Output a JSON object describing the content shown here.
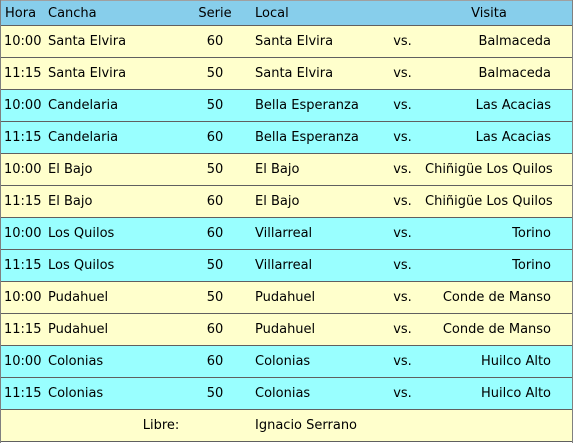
{
  "headers": {
    "hora": "Hora",
    "cancha": "Cancha",
    "serie": "Serie",
    "local": "Local",
    "visita": "Visita"
  },
  "rows": [
    {
      "hora": "10:00",
      "cancha": "Santa Elvira",
      "serie": "60",
      "local": "Santa Elvira",
      "vs": "vs.",
      "visita": "Balmaceda"
    },
    {
      "hora": "11:15",
      "cancha": "Santa Elvira",
      "serie": "50",
      "local": "Santa Elvira",
      "vs": "vs.",
      "visita": "Balmaceda"
    },
    {
      "hora": "10:00",
      "cancha": "Candelaria",
      "serie": "50",
      "local": "Bella Esperanza",
      "vs": "vs.",
      "visita": "Las Acacias"
    },
    {
      "hora": "11:15",
      "cancha": "Candelaria",
      "serie": "60",
      "local": "Bella Esperanza",
      "vs": "vs.",
      "visita": "Las Acacias"
    },
    {
      "hora": "10:00",
      "cancha": "El Bajo",
      "serie": "50",
      "local": "El Bajo",
      "vs": "vs.",
      "visita": "Chiñigüe Los Quilos"
    },
    {
      "hora": "11:15",
      "cancha": "El Bajo",
      "serie": "60",
      "local": "El Bajo",
      "vs": "vs.",
      "visita": "Chiñigüe Los Quilos"
    },
    {
      "hora": "10:00",
      "cancha": "Los Quilos",
      "serie": "60",
      "local": "Villarreal",
      "vs": "vs.",
      "visita": "Torino"
    },
    {
      "hora": "11:15",
      "cancha": "Los Quilos",
      "serie": "50",
      "local": "Villarreal",
      "vs": "vs.",
      "visita": "Torino"
    },
    {
      "hora": "10:00",
      "cancha": "Pudahuel",
      "serie": "50",
      "local": "Pudahuel",
      "vs": "vs.",
      "visita": "Conde de Manso"
    },
    {
      "hora": "11:15",
      "cancha": "Pudahuel",
      "serie": "60",
      "local": "Pudahuel",
      "vs": "vs.",
      "visita": "Conde de Manso"
    },
    {
      "hora": "10:00",
      "cancha": "Colonias",
      "serie": "60",
      "local": "Colonias",
      "vs": "vs.",
      "visita": "Huilco Alto"
    },
    {
      "hora": "11:15",
      "cancha": "Colonias",
      "serie": "50",
      "local": "Colonias",
      "vs": "vs.",
      "visita": "Huilco Alto"
    }
  ],
  "libre": {
    "label": "Libre:",
    "team": "Ignacio Serrano"
  },
  "colors": {
    "header_bg": "#87ceeb",
    "row_yellow": "#ffffcc",
    "row_cyan": "#99ffff"
  }
}
